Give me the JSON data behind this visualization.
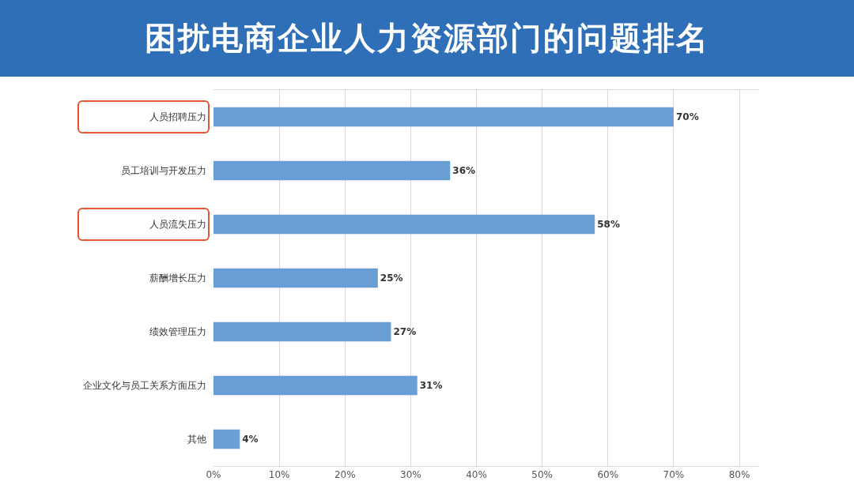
{
  "chart_data": {
    "type": "bar",
    "orientation": "horizontal",
    "title": "困扰电商企业人力资源部门的问题排名",
    "categories": [
      "人员招聘压力",
      "员工培训与开发压力",
      "人员流失压力",
      "薪酬增长压力",
      "绩效管理压力",
      "企业文化与员工关系方面压力",
      "其他"
    ],
    "values": [
      70,
      36,
      58,
      25,
      27,
      31,
      4
    ],
    "value_labels": [
      "70%",
      "36%",
      "58%",
      "25%",
      "27%",
      "31%",
      "4%"
    ],
    "color": "#6a9fd6",
    "xlim": [
      0,
      83
    ],
    "xticks": [
      {
        "value": 0,
        "label": "0%"
      },
      {
        "value": 10,
        "label": "10%"
      },
      {
        "value": 20,
        "label": "20%"
      },
      {
        "value": 30,
        "label": "30%"
      },
      {
        "value": 40,
        "label": "40%"
      },
      {
        "value": 50,
        "label": "50%"
      },
      {
        "value": 60,
        "label": "60%"
      },
      {
        "value": 70,
        "label": "70%"
      },
      {
        "value": 80,
        "label": "80%"
      }
    ],
    "grid": "x"
  }
}
